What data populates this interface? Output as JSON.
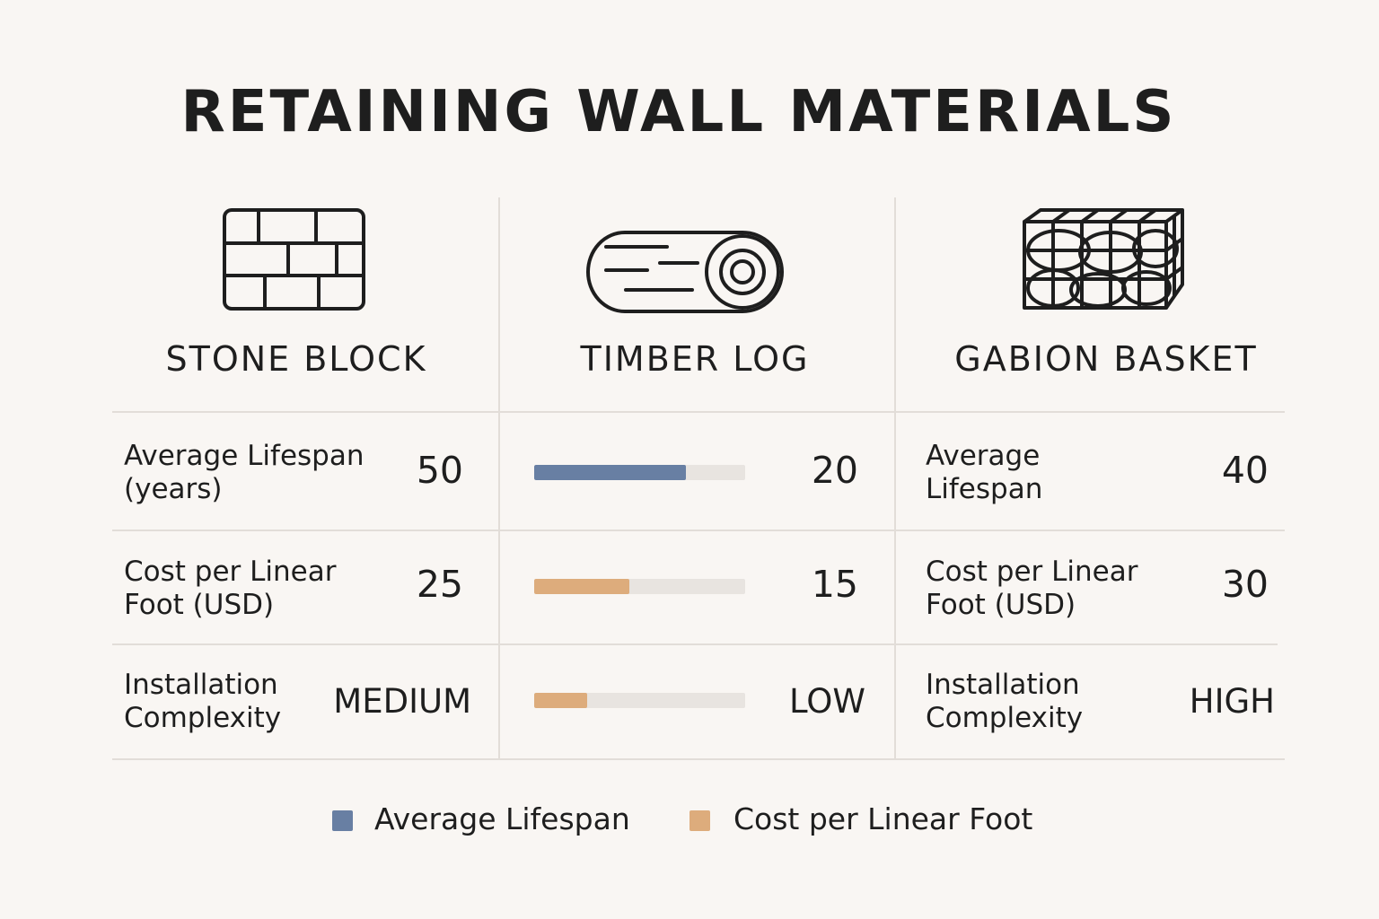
{
  "title": "RETAINING WALL MATERIALS",
  "colors": {
    "lifespan": "#687fa3",
    "cost": "#ddac7c",
    "track": "#e8e4e0"
  },
  "materials": [
    {
      "name": "STONE BLOCK",
      "icon": "brick-wall-icon"
    },
    {
      "name": "TIMBER LOG",
      "icon": "log-icon"
    },
    {
      "name": "GABION BASKET",
      "icon": "gabion-icon"
    }
  ],
  "rows": {
    "lifespan": {
      "stone_label": "Average Lifespan\n(years)",
      "stone_value": "50",
      "timber_value": "20",
      "gabion_label": "Average\nLifespan",
      "gabion_value": "40"
    },
    "cost": {
      "stone_label": "Cost per Linear\nFoot (USD)",
      "stone_value": "25",
      "timber_value": "15",
      "gabion_label": "Cost per Linear\nFoot (USD)",
      "gabion_value": "30"
    },
    "complexity": {
      "stone_label": "Installation\nComplexity",
      "stone_value": "MEDIUM",
      "timber_value": "LOW",
      "gabion_label": "Installation\nComplexity",
      "gabion_value": "HIGH"
    }
  },
  "legend": {
    "lifespan": "Average Lifespan",
    "cost": "Cost per Linear Foot"
  },
  "chart_data": {
    "type": "bar",
    "categories": [
      "Average Lifespan (years)",
      "Cost per Linear Foot (USD)",
      "Installation Complexity"
    ],
    "bar_fill_fractions": [
      0.72,
      0.45,
      0.25
    ],
    "series": [
      {
        "name": "STONE BLOCK",
        "values": [
          50,
          25,
          "MEDIUM"
        ]
      },
      {
        "name": "TIMBER LOG",
        "values": [
          20,
          15,
          "LOW"
        ]
      },
      {
        "name": "GABION BASKET",
        "values": [
          40,
          30,
          "HIGH"
        ]
      }
    ],
    "legend": [
      "Average Lifespan",
      "Cost per Linear Foot"
    ],
    "legend_position": "bottom"
  }
}
